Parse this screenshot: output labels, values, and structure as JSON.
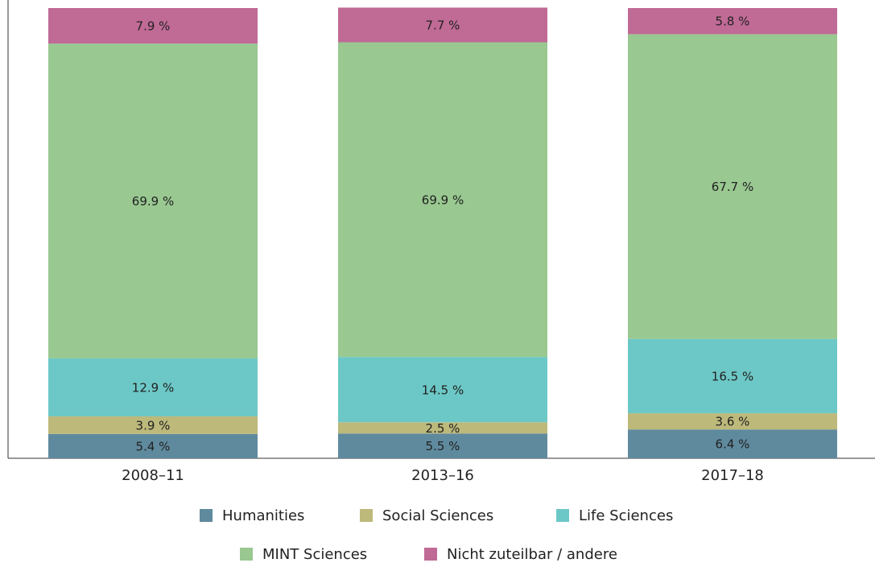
{
  "chart_data": {
    "type": "stacked-bar",
    "categories": [
      "2008–11",
      "2013–16",
      "2017–18"
    ],
    "series": [
      {
        "name": "Humanities",
        "color": "#5f8a9e",
        "values": [
          5.4,
          5.5,
          6.4
        ],
        "value_labels": [
          "5.4 %",
          "5.5 %",
          "6.4 %"
        ]
      },
      {
        "name": "Social Sciences",
        "color": "#bdb97b",
        "values": [
          3.9,
          2.5,
          3.6
        ],
        "value_labels": [
          "3.9 %",
          "2.5 %",
          "3.6 %"
        ]
      },
      {
        "name": "Life Sciences",
        "color": "#6cc8c6",
        "values": [
          12.9,
          14.5,
          16.5
        ],
        "value_labels": [
          "12.9 %",
          "14.5 %",
          "16.5 %"
        ]
      },
      {
        "name": "MINT Sciences",
        "color": "#99c891",
        "values": [
          69.9,
          69.9,
          67.7
        ],
        "value_labels": [
          "69.9 %",
          "69.9 %",
          "67.7 %"
        ]
      },
      {
        "name": "Nicht zuteilbar / andere",
        "color": "#c06a96",
        "values": [
          7.9,
          7.7,
          5.8
        ],
        "value_labels": [
          "7.9 %",
          "7.7 %",
          "5.8 %"
        ]
      }
    ],
    "ylim": [
      0,
      100
    ]
  }
}
